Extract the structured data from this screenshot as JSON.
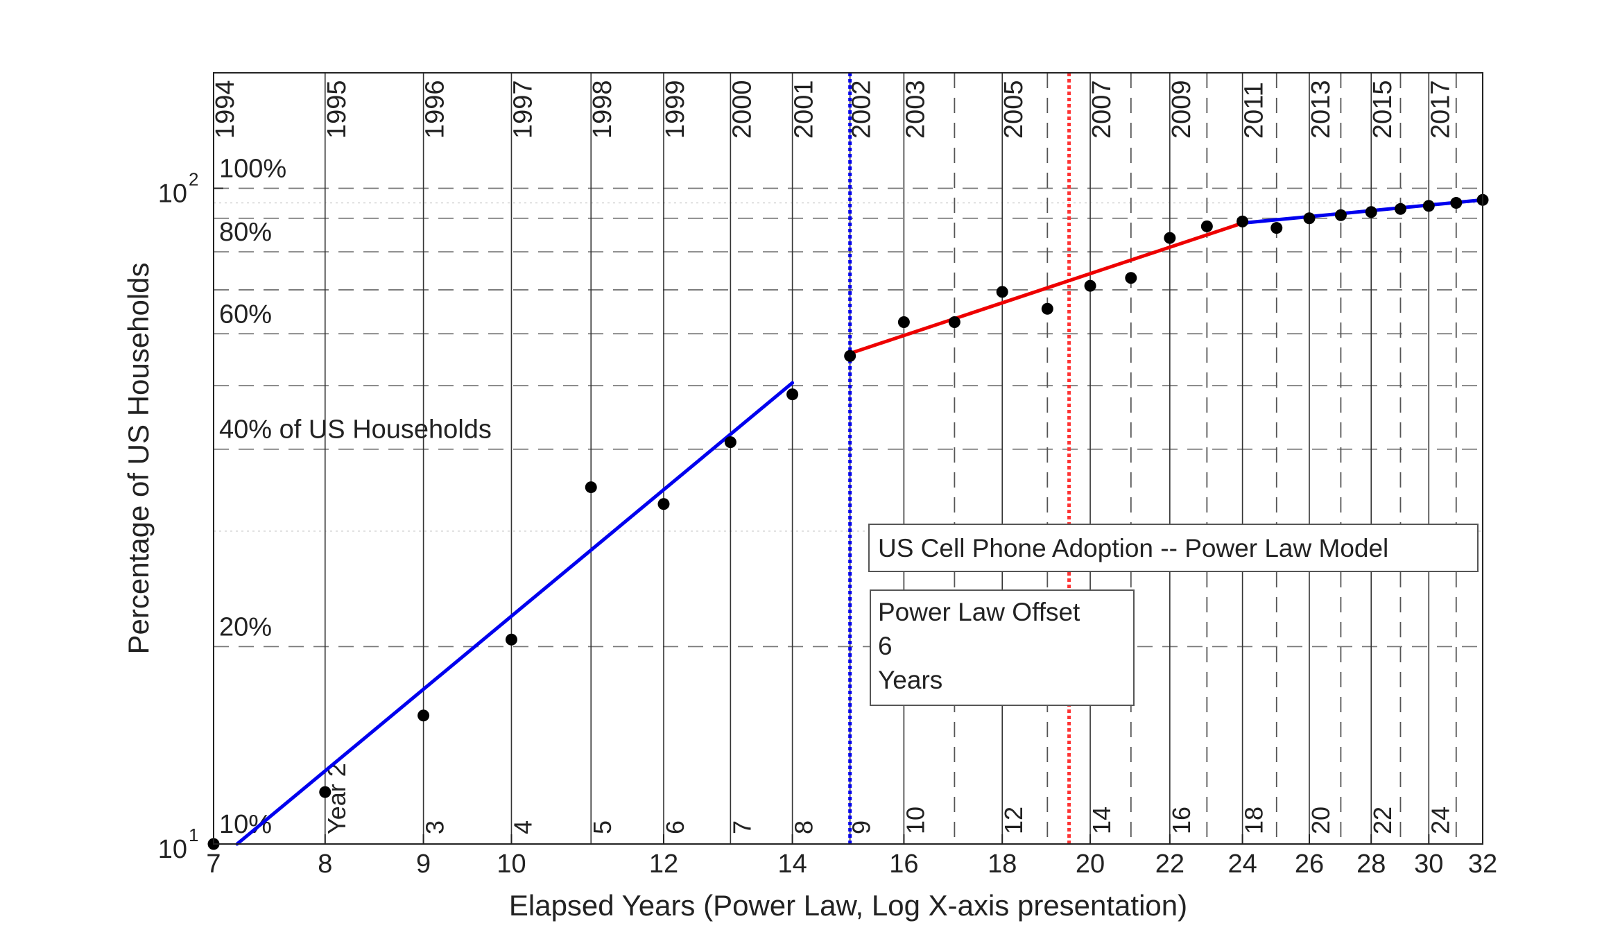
{
  "chart_data": {
    "type": "scatter",
    "title": "",
    "xlabel": "Elapsed Years (Power Law, Log X-axis presentation)",
    "ylabel": "Percentage of US Households",
    "x_scale": "log",
    "y_scale": "log",
    "xlim": [
      7,
      32
    ],
    "ylim": [
      10,
      150
    ],
    "x_ticks": [
      7,
      8,
      9,
      10,
      12,
      14,
      16,
      18,
      20,
      22,
      24,
      26,
      28,
      30,
      32
    ],
    "y_ticks": [
      {
        "value": 10,
        "base": "10",
        "exp": "1"
      },
      {
        "value": 100,
        "base": "10",
        "exp": "2"
      }
    ],
    "grid": true,
    "percent_lines": [
      {
        "value": 10,
        "label": "10%"
      },
      {
        "value": 20,
        "label": "20%"
      },
      {
        "value": 40,
        "label": "40% of US Households"
      },
      {
        "value": 60,
        "label": "60%"
      },
      {
        "value": 80,
        "label": "80%"
      },
      {
        "value": 100,
        "label": "100%"
      }
    ],
    "dashed_minor_lines": [
      50,
      70,
      90
    ],
    "dotted_minor_lines": [
      30,
      95
    ],
    "year_lines": [
      {
        "x": 7,
        "year": "1994",
        "elapsed": ""
      },
      {
        "x": 8,
        "year": "1995",
        "elapsed": "Year 2"
      },
      {
        "x": 9,
        "year": "1996",
        "elapsed": "3"
      },
      {
        "x": 10,
        "year": "1997",
        "elapsed": "4"
      },
      {
        "x": 11,
        "year": "1998",
        "elapsed": "5"
      },
      {
        "x": 12,
        "year": "1999",
        "elapsed": "6"
      },
      {
        "x": 13,
        "year": "2000",
        "elapsed": "7"
      },
      {
        "x": 14,
        "year": "2001",
        "elapsed": "8"
      },
      {
        "x": 15,
        "year": "2002",
        "elapsed": "9"
      },
      {
        "x": 16,
        "year": "2003",
        "elapsed": "10"
      },
      {
        "x": 18,
        "year": "2005",
        "elapsed": "12"
      },
      {
        "x": 20,
        "year": "2007",
        "elapsed": "14"
      },
      {
        "x": 22,
        "year": "2009",
        "elapsed": "16"
      },
      {
        "x": 24,
        "year": "2011",
        "elapsed": "18"
      },
      {
        "x": 26,
        "year": "2013",
        "elapsed": "20"
      },
      {
        "x": 28,
        "year": "2015",
        "elapsed": "22"
      },
      {
        "x": 30,
        "year": "2017",
        "elapsed": "24"
      }
    ],
    "dashed_year_lines": [
      17,
      19,
      21,
      23,
      25,
      27,
      29,
      31
    ],
    "right_edge_line": 32,
    "markers": [
      {
        "x": 15,
        "color": "#0000ee",
        "style": "dotted"
      },
      {
        "x": 19.5,
        "color": "#ff3333",
        "style": "dotted"
      }
    ],
    "points": [
      {
        "x": 7,
        "y": 10
      },
      {
        "x": 8,
        "y": 12
      },
      {
        "x": 9,
        "y": 15.7
      },
      {
        "x": 10,
        "y": 20.5
      },
      {
        "x": 11,
        "y": 35
      },
      {
        "x": 12,
        "y": 33
      },
      {
        "x": 13,
        "y": 41
      },
      {
        "x": 14,
        "y": 48.5
      },
      {
        "x": 15,
        "y": 55.5
      },
      {
        "x": 16,
        "y": 62.5
      },
      {
        "x": 17,
        "y": 62.5
      },
      {
        "x": 18,
        "y": 69.5
      },
      {
        "x": 19,
        "y": 65.5
      },
      {
        "x": 20,
        "y": 71
      },
      {
        "x": 21,
        "y": 73
      },
      {
        "x": 22,
        "y": 84
      },
      {
        "x": 23,
        "y": 87.5
      },
      {
        "x": 24,
        "y": 89
      },
      {
        "x": 25,
        "y": 87
      },
      {
        "x": 26,
        "y": 90
      },
      {
        "x": 27,
        "y": 91
      },
      {
        "x": 28,
        "y": 92
      },
      {
        "x": 29,
        "y": 93
      },
      {
        "x": 30,
        "y": 94
      },
      {
        "x": 31,
        "y": 95
      },
      {
        "x": 32,
        "y": 96
      }
    ],
    "series": [
      {
        "color": "#0000ee",
        "points": [
          [
            7.2,
            10
          ],
          [
            14,
            50.5
          ]
        ]
      },
      {
        "color": "#ee0000",
        "points": [
          [
            15,
            56
          ],
          [
            24,
            88.5
          ]
        ]
      },
      {
        "color": "#0000ee",
        "points": [
          [
            24,
            88.5
          ],
          [
            32,
            96
          ]
        ]
      }
    ],
    "annotations": [
      {
        "lines": [
          "US Cell Phone Adoption -- Power Law Model"
        ]
      },
      {
        "lines": [
          "Power Law Offset",
          "6",
          "Years"
        ]
      }
    ]
  }
}
